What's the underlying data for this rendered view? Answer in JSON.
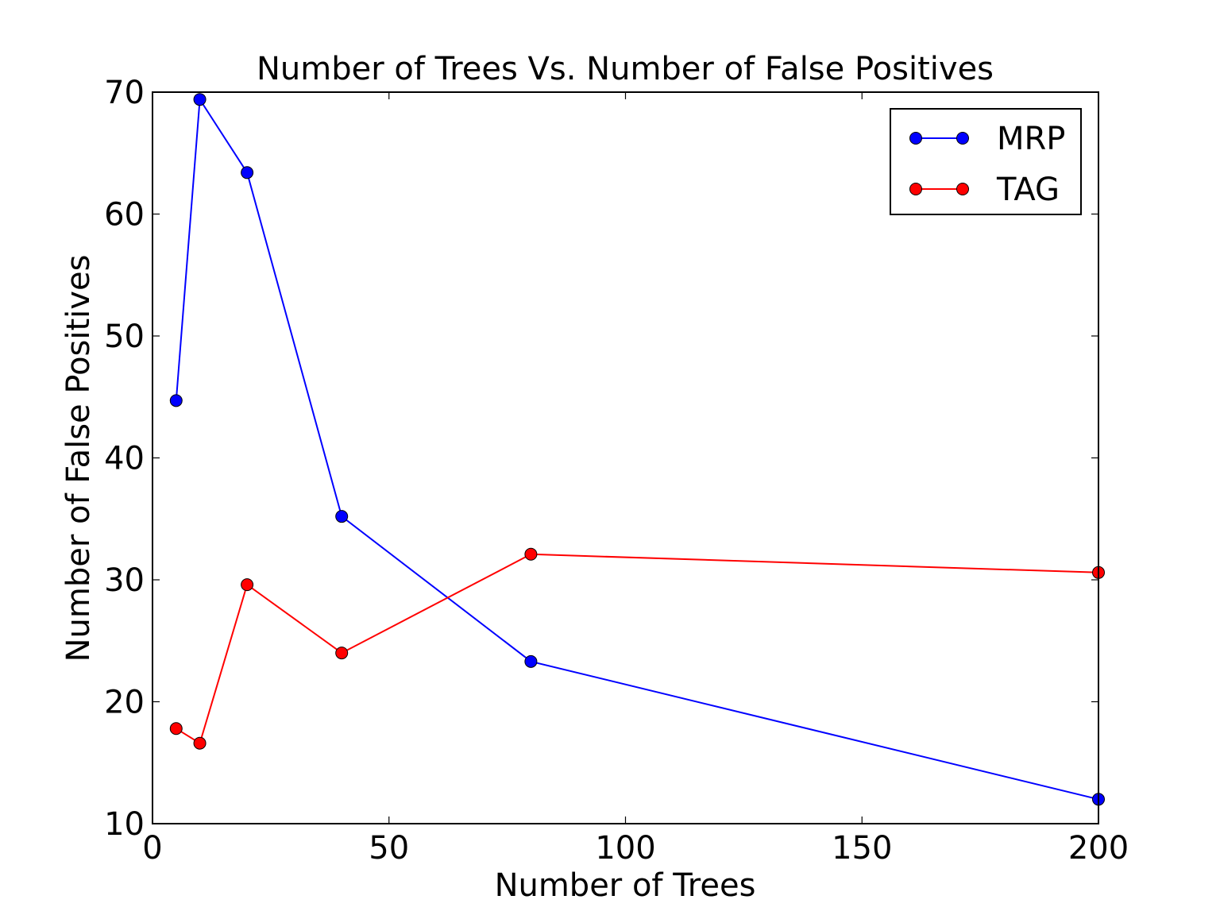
{
  "chart_data": {
    "type": "line",
    "title": "Number of Trees Vs. Number of False Positives",
    "xlabel": "Number of Trees",
    "ylabel": "Number of False Positives",
    "xlim": [
      0,
      200
    ],
    "ylim": [
      10,
      70
    ],
    "xticks": [
      0,
      50,
      100,
      150,
      200
    ],
    "yticks": [
      10,
      20,
      30,
      40,
      50,
      60,
      70
    ],
    "grid": false,
    "legend_position": "top-right",
    "series": [
      {
        "name": "MRP",
        "color": "#0000ff",
        "x": [
          5,
          10,
          20,
          40,
          80,
          200
        ],
        "y": [
          44.7,
          69.4,
          63.4,
          35.2,
          23.3,
          12.0
        ]
      },
      {
        "name": "TAG",
        "color": "#ff0000",
        "x": [
          5,
          10,
          20,
          40,
          80,
          200
        ],
        "y": [
          17.8,
          16.6,
          29.6,
          24.0,
          32.1,
          30.6
        ]
      }
    ]
  }
}
